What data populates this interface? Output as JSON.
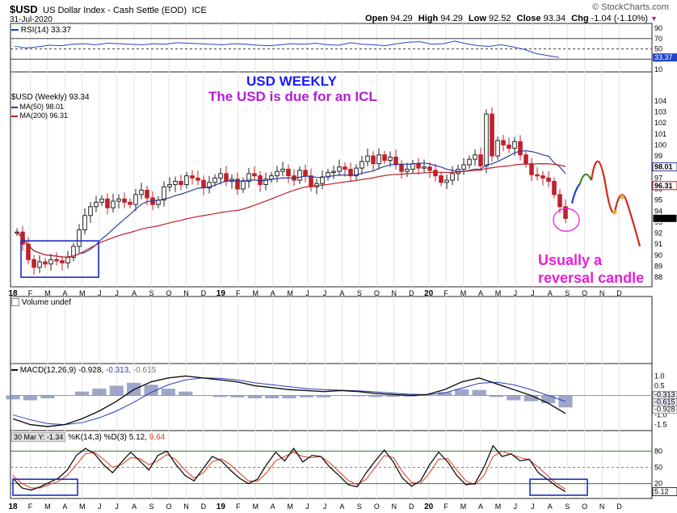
{
  "header": {
    "symbol": "$USD",
    "name": "US Dollar Index - Cash Settle (EOD)",
    "exchange": "ICE",
    "date": "31-Jul-2020",
    "brand": "© StockCharts.com",
    "open_label": "Open",
    "open": "94.29",
    "high_label": "High",
    "high": "94.29",
    "low_label": "Low",
    "low": "92.52",
    "close_label": "Close",
    "close": "93.34",
    "chg_label": "Chg",
    "chg": "-1.04 (-1.10%)",
    "chg_arrow": "▼"
  },
  "annotations": {
    "title": "USD WEEKLY",
    "subtitle": "The USD is due for an ICL",
    "note_line1": "Usually a",
    "note_line2": "reversal candle",
    "title_color": "#1a1aff",
    "subtitle_color": "#b21fd1",
    "note_color": "#e81fd6"
  },
  "colors": {
    "frame": "#222222",
    "rsi_line": "#2346c9",
    "ma50": "#2b3d9e",
    "ma200": "#c0202a",
    "candle_up": "#c0202a",
    "candle_down": "#222222",
    "projection_blue": "#1a3cc9",
    "projection_green": "#3a8a2a",
    "projection_red": "#d6281c",
    "projection_point": "#e8b02a",
    "box": "#1a2fc4",
    "circle": "#e81fd6",
    "macd_hist": "#7d8ab8",
    "stoch_k": "#111111",
    "stoch_d": "#e0391c"
  },
  "legend": {
    "rsi": "RSI(14) 33.37",
    "price": "$USD (Weekly) 93.34",
    "ma50": "MA(50) 98.01",
    "ma200": "MA(200) 96.31",
    "volume": "Volume undef",
    "macd_prefix": "MACD(12,26,9)",
    "macd_v1": "-0.928,",
    "macd_v2": "-0.313,",
    "macd_v3": "-0.615",
    "stoch_prefix": "%K(14,3) %D(3)",
    "stoch_v1": "5.12,",
    "stoch_v2": "9.64",
    "stoch_tooltip": "30 Mar Y: -1.34"
  },
  "chart_data": [
    {
      "type": "line",
      "panel": "rsi",
      "series": [
        {
          "name": "RSI(14)",
          "values": [
            55,
            52,
            54,
            57,
            56,
            59,
            60,
            58,
            61,
            60,
            59,
            58,
            60,
            59,
            62,
            61,
            60,
            59,
            58,
            60,
            59,
            57,
            56,
            58,
            60,
            59,
            61,
            58,
            57,
            62,
            59,
            58,
            56,
            60,
            63,
            64,
            59,
            60,
            65,
            60,
            56,
            55,
            58,
            54,
            49,
            41,
            37,
            33.37
          ]
        }
      ],
      "ylim": [
        10,
        90
      ],
      "reference_lines": [
        70,
        50,
        30
      ],
      "yticks": [
        "90",
        "70",
        "50",
        "30",
        "10"
      ],
      "last_label": "33.37"
    },
    {
      "type": "candlestick",
      "panel": "price",
      "x_tick_labels": [
        "18",
        "F",
        "M",
        "A",
        "M",
        "J",
        "J",
        "A",
        "S",
        "O",
        "N",
        "D",
        "19",
        "F",
        "M",
        "A",
        "M",
        "J",
        "J",
        "A",
        "S",
        "O",
        "N",
        "D",
        "20",
        "F",
        "M",
        "A",
        "M",
        "J",
        "J",
        "A",
        "S",
        "O",
        "N",
        "D"
      ],
      "weekly_close": [
        92.1,
        91.0,
        89.6,
        88.9,
        89.4,
        89.2,
        89.6,
        89.5,
        89.3,
        89.8,
        90.8,
        92.3,
        93.6,
        94.4,
        94.8,
        95.1,
        94.3,
        94.9,
        95.1,
        94.8,
        94.6,
        95.5,
        95.9,
        95.2,
        94.6,
        95.0,
        96.2,
        96.4,
        96.7,
        96.4,
        97.2,
        97.0,
        96.8,
        96.1,
        96.6,
        97.0,
        97.4,
        96.7,
        96.9,
        96.0,
        96.7,
        97.4,
        97.2,
        96.4,
        96.9,
        97.2,
        97.6,
        97.8,
        97.2,
        96.8,
        97.7,
        97.2,
        96.2,
        96.5,
        97.1,
        97.5,
        97.6,
        98.0,
        97.8,
        97.2,
        97.9,
        98.5,
        99.0,
        98.3,
        99.1,
        98.6,
        98.9,
        98.2,
        97.6,
        97.8,
        98.3,
        97.9,
        98.0,
        97.7,
        97.2,
        96.6,
        96.8,
        97.4,
        97.8,
        98.2,
        98.7,
        99.1,
        98.1,
        102.8,
        99.0,
        100.4,
        100.0,
        99.7,
        100.3,
        99.1,
        98.3,
        97.3,
        97.2,
        97.0,
        96.7,
        95.5,
        94.4,
        93.34
      ],
      "ylim": [
        87.5,
        104.5
      ],
      "yticks": [
        "104",
        "103",
        "102",
        "101",
        "100",
        "99",
        "98",
        "97",
        "96",
        "95",
        "94",
        "93",
        "92",
        "91",
        "90",
        "89",
        "88"
      ],
      "ma50": {
        "name": "MA(50)",
        "last": "98.01"
      },
      "ma200": {
        "name": "MA(200)",
        "last": "96.31"
      },
      "last_label": "93.34",
      "ma50_label": "98.01",
      "ma200_label": "96.31"
    },
    {
      "type": "line",
      "panel": "macd",
      "series": [
        {
          "name": "MACD",
          "values": [
            -1.2,
            -1.5,
            -1.6,
            -1.5,
            -1.2,
            -0.8,
            -0.3,
            0.3,
            0.7,
            0.9,
            1.0,
            0.9,
            0.8,
            0.7,
            0.5,
            0.4,
            0.3,
            0.25,
            0.2,
            0.25,
            0.2,
            0.1,
            0.05,
            0.0,
            0.05,
            0.3,
            0.7,
            0.9,
            0.6,
            0.3,
            0.0,
            -0.4,
            -0.928
          ]
        },
        {
          "name": "Signal",
          "values": [
            -1.0,
            -1.25,
            -1.45,
            -1.5,
            -1.4,
            -1.15,
            -0.8,
            -0.35,
            0.15,
            0.55,
            0.8,
            0.9,
            0.88,
            0.8,
            0.65,
            0.55,
            0.45,
            0.35,
            0.3,
            0.27,
            0.24,
            0.18,
            0.12,
            0.06,
            0.04,
            0.13,
            0.38,
            0.62,
            0.68,
            0.55,
            0.3,
            0.0,
            -0.313
          ]
        }
      ],
      "histogram": [
        -0.2,
        -0.25,
        -0.15,
        0.0,
        0.2,
        0.35,
        0.5,
        0.65,
        0.55,
        0.35,
        0.2,
        0.0,
        -0.08,
        -0.1,
        -0.15,
        -0.15,
        -0.15,
        -0.1,
        -0.1,
        -0.02,
        -0.04,
        -0.08,
        -0.07,
        -0.06,
        0.01,
        0.17,
        0.32,
        0.28,
        -0.08,
        -0.25,
        -0.3,
        -0.4,
        -0.615
      ],
      "ylim": [
        -1.6,
        1.1
      ],
      "yticks": [
        "1.0",
        "0.5",
        "0.0",
        "-0.5",
        "-1.0",
        "-1.5"
      ],
      "value_labels": [
        "-0.313",
        "-0.615",
        "-0.928"
      ]
    },
    {
      "type": "line",
      "panel": "stochastic",
      "series": [
        {
          "name": "%K",
          "values": [
            30,
            12,
            8,
            14,
            22,
            30,
            45,
            72,
            85,
            75,
            55,
            40,
            60,
            78,
            62,
            45,
            72,
            80,
            55,
            35,
            25,
            48,
            70,
            62,
            45,
            30,
            20,
            28,
            55,
            78,
            62,
            85,
            60,
            72,
            70,
            50,
            35,
            18,
            14,
            40,
            62,
            82,
            60,
            30,
            15,
            25,
            55,
            78,
            60,
            35,
            18,
            20,
            50,
            90,
            70,
            75,
            62,
            65,
            40,
            28,
            15,
            5.12
          ]
        },
        {
          "name": "%D",
          "values": [
            35,
            20,
            12,
            12,
            18,
            24,
            35,
            55,
            75,
            78,
            65,
            50,
            55,
            68,
            66,
            55,
            62,
            74,
            64,
            45,
            30,
            40,
            60,
            66,
            55,
            40,
            25,
            24,
            40,
            62,
            70,
            78,
            70,
            68,
            70,
            58,
            42,
            26,
            18,
            28,
            50,
            72,
            68,
            42,
            22,
            20,
            40,
            65,
            66,
            45,
            25,
            18,
            35,
            70,
            80,
            74,
            68,
            64,
            50,
            35,
            20,
            9.64
          ]
        }
      ],
      "ylim": [
        0,
        100
      ],
      "reference_lines": [
        80,
        50,
        20
      ],
      "yticks": [
        "80",
        "50",
        "20"
      ],
      "last_label": "5.12"
    }
  ]
}
